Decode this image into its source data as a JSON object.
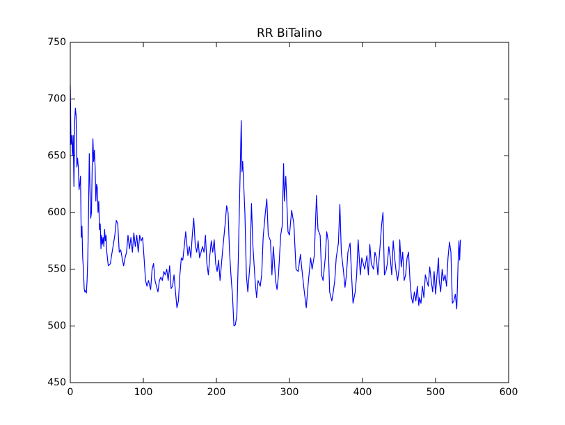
{
  "chart_data": {
    "type": "line",
    "title": "RR BiTalino",
    "color": "#0000ff",
    "x": [
      0,
      1,
      2,
      3,
      4,
      5,
      6,
      7,
      8,
      9,
      10,
      11,
      12,
      13,
      14,
      15,
      16,
      17,
      18,
      19,
      20,
      21,
      22,
      23,
      24,
      25,
      26,
      27,
      28,
      29,
      30,
      31,
      32,
      33,
      34,
      35,
      36,
      37,
      38,
      39,
      40,
      41,
      42,
      43,
      44,
      45,
      46,
      47,
      48,
      49,
      50,
      52,
      55,
      56,
      59,
      61,
      63,
      65,
      67,
      69,
      71,
      73,
      75,
      77,
      79,
      81,
      83,
      85,
      87,
      89,
      91,
      93,
      95,
      97,
      99,
      101,
      103,
      105,
      107,
      110,
      112,
      114,
      116,
      118,
      120,
      122,
      124,
      126,
      128,
      130,
      132,
      134,
      136,
      138,
      140,
      142,
      144,
      146,
      148,
      150,
      152,
      154,
      156,
      158,
      161,
      163,
      165,
      167,
      169,
      171,
      173,
      175,
      177,
      179,
      181,
      183,
      185,
      187,
      189,
      191,
      193,
      195,
      197,
      199,
      201,
      203,
      205,
      207,
      209,
      212,
      214,
      216,
      218,
      220,
      222,
      224,
      226,
      228,
      230,
      232,
      234,
      235,
      236,
      239,
      241,
      243,
      246,
      248,
      250,
      253,
      255,
      257,
      260,
      262,
      264,
      267,
      269,
      271,
      274,
      276,
      278,
      281,
      283,
      285,
      288,
      290,
      292,
      293,
      295,
      298,
      300,
      303,
      306,
      309,
      312,
      315,
      317,
      320,
      323,
      326,
      329,
      331,
      334,
      337,
      339,
      342,
      344,
      346,
      349,
      351,
      353,
      355,
      358,
      360,
      362,
      364,
      367,
      369,
      371,
      374,
      376,
      378,
      380,
      383,
      385,
      387,
      390,
      392,
      394,
      397,
      399,
      401,
      403,
      406,
      408,
      410,
      412,
      415,
      417,
      419,
      421,
      424,
      426,
      428,
      430,
      432,
      434,
      436,
      438,
      440,
      442,
      444,
      446,
      448,
      450,
      451,
      453,
      455,
      457,
      459,
      461,
      463,
      465,
      467,
      469,
      471,
      473,
      475,
      477,
      478,
      480,
      482,
      484,
      486,
      488,
      490,
      492,
      494,
      496,
      498,
      500,
      502,
      504,
      505,
      507,
      509,
      511,
      513,
      515,
      517,
      519,
      521,
      523,
      525,
      527,
      529,
      531,
      532,
      533,
      534
    ],
    "values": [
      712,
      660,
      668,
      650,
      668,
      623,
      680,
      692,
      685,
      640,
      648,
      640,
      620,
      625,
      632,
      578,
      588,
      560,
      550,
      533,
      530,
      531,
      529,
      540,
      560,
      600,
      652,
      620,
      595,
      600,
      640,
      665,
      645,
      655,
      640,
      610,
      625,
      622,
      600,
      610,
      585,
      590,
      568,
      580,
      572,
      578,
      570,
      585,
      575,
      580,
      565,
      553,
      555,
      560,
      572,
      580,
      593,
      590,
      565,
      567,
      560,
      553,
      560,
      565,
      580,
      568,
      578,
      565,
      582,
      570,
      580,
      565,
      580,
      575,
      578,
      560,
      540,
      535,
      540,
      532,
      550,
      555,
      540,
      535,
      530,
      540,
      543,
      540,
      548,
      545,
      550,
      540,
      553,
      533,
      535,
      545,
      530,
      516,
      522,
      545,
      560,
      558,
      570,
      583,
      562,
      570,
      560,
      580,
      595,
      572,
      565,
      575,
      560,
      565,
      570,
      565,
      580,
      555,
      545,
      562,
      575,
      565,
      576,
      555,
      548,
      558,
      540,
      555,
      570,
      590,
      606,
      600,
      565,
      544,
      527,
      500,
      501,
      510,
      560,
      620,
      681,
      636,
      645,
      600,
      545,
      530,
      555,
      608,
      570,
      540,
      525,
      540,
      535,
      545,
      578,
      600,
      612,
      580,
      575,
      545,
      570,
      540,
      532,
      545,
      580,
      588,
      643,
      610,
      632,
      583,
      580,
      602,
      590,
      550,
      548,
      563,
      550,
      532,
      516,
      540,
      560,
      550,
      562,
      615,
      585,
      580,
      545,
      540,
      560,
      583,
      575,
      530,
      522,
      530,
      540,
      560,
      573,
      607,
      565,
      548,
      534,
      545,
      565,
      573,
      545,
      520,
      530,
      545,
      576,
      545,
      560,
      555,
      550,
      562,
      545,
      572,
      555,
      550,
      565,
      560,
      545,
      570,
      588,
      600,
      545,
      548,
      555,
      570,
      560,
      545,
      575,
      560,
      548,
      540,
      550,
      576,
      552,
      565,
      540,
      545,
      560,
      565,
      540,
      525,
      520,
      530,
      522,
      535,
      518,
      525,
      520,
      535,
      525,
      545,
      540,
      535,
      552,
      540,
      530,
      548,
      528,
      545,
      560,
      540,
      530,
      550,
      540,
      545,
      535,
      560,
      574,
      565,
      520,
      522,
      528,
      515,
      560,
      575,
      558,
      576
    ],
    "xlim": [
      0,
      600
    ],
    "xticks": [
      0,
      100,
      200,
      300,
      400,
      500,
      600
    ],
    "ylim": [
      450,
      750
    ],
    "yticks": [
      450,
      500,
      550,
      600,
      650,
      700,
      750
    ],
    "grid": false
  }
}
